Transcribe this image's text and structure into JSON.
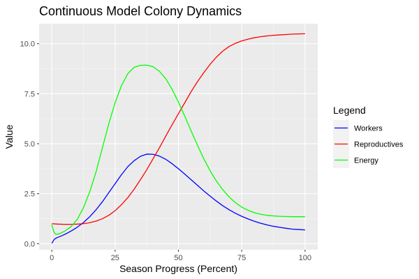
{
  "chart_data": {
    "type": "line",
    "title": "Continuous Model Colony Dynamics",
    "xlabel": "Season Progress (Percent)",
    "ylabel": "Value",
    "xlim": [
      -5,
      105
    ],
    "ylim": [
      -0.3,
      11.0
    ],
    "x_ticks": [
      0,
      25,
      50,
      75,
      100
    ],
    "x_tick_labels": [
      "0",
      "25",
      "50",
      "75",
      "100"
    ],
    "y_ticks": [
      0,
      2.5,
      5,
      7.5,
      10
    ],
    "y_tick_labels": [
      "0.0",
      "2.5",
      "5.0",
      "7.5",
      "10.0"
    ],
    "grid": true,
    "legend": {
      "title": "Legend",
      "position": "right"
    },
    "series": [
      {
        "name": "Workers",
        "color": "#0000ff",
        "x": [
          0,
          1,
          2,
          4,
          6,
          8,
          10,
          12.5,
          15,
          17.5,
          20,
          22.5,
          25,
          27.5,
          30,
          32.5,
          35,
          37.5,
          40,
          42.5,
          45,
          47.5,
          50,
          52.5,
          55,
          57.5,
          60,
          62.5,
          65,
          67.5,
          70,
          72.5,
          75,
          77.5,
          80,
          82.5,
          85,
          87.5,
          90,
          92.5,
          95,
          97.5,
          100
        ],
        "y": [
          0.02,
          0.22,
          0.3,
          0.4,
          0.52,
          0.66,
          0.82,
          1.06,
          1.35,
          1.7,
          2.1,
          2.55,
          3.0,
          3.45,
          3.85,
          4.15,
          4.37,
          4.48,
          4.47,
          4.38,
          4.22,
          4.0,
          3.75,
          3.48,
          3.2,
          2.92,
          2.64,
          2.38,
          2.13,
          1.9,
          1.7,
          1.52,
          1.37,
          1.24,
          1.12,
          1.02,
          0.94,
          0.87,
          0.82,
          0.77,
          0.73,
          0.71,
          0.69
        ]
      },
      {
        "name": "Reproductives",
        "color": "#ff0000",
        "x": [
          0,
          2.5,
          5,
          7.5,
          10,
          12.5,
          15,
          17.5,
          20,
          22.5,
          25,
          27.5,
          30,
          32.5,
          35,
          37.5,
          40,
          42.5,
          45,
          47.5,
          50,
          52.5,
          55,
          57.5,
          60,
          62.5,
          65,
          67.5,
          70,
          72.5,
          75,
          77.5,
          80,
          82.5,
          85,
          87.5,
          90,
          92.5,
          95,
          97.5,
          100
        ],
        "y": [
          1.0,
          0.98,
          0.97,
          0.97,
          0.98,
          1.0,
          1.05,
          1.13,
          1.25,
          1.42,
          1.65,
          1.95,
          2.3,
          2.72,
          3.2,
          3.7,
          4.25,
          4.8,
          5.38,
          5.95,
          6.5,
          7.05,
          7.6,
          8.1,
          8.55,
          8.97,
          9.33,
          9.63,
          9.86,
          10.02,
          10.14,
          10.23,
          10.3,
          10.35,
          10.39,
          10.42,
          10.44,
          10.46,
          10.48,
          10.49,
          10.5
        ]
      },
      {
        "name": "Energy",
        "color": "#00ff00",
        "x": [
          0,
          0.5,
          1,
          1.5,
          2,
          3,
          4,
          5,
          7.5,
          10,
          12.5,
          15,
          17.5,
          20,
          22.5,
          25,
          27.5,
          30,
          32.5,
          35,
          37.5,
          40,
          42.5,
          45,
          47.5,
          50,
          52.5,
          55,
          57.5,
          60,
          62.5,
          65,
          67.5,
          70,
          72.5,
          75,
          77.5,
          80,
          82.5,
          85,
          87.5,
          90,
          92.5,
          95,
          97.5,
          100
        ],
        "y": [
          0.95,
          0.72,
          0.55,
          0.48,
          0.47,
          0.5,
          0.56,
          0.62,
          0.84,
          1.2,
          1.8,
          2.6,
          3.6,
          4.8,
          6.0,
          7.05,
          7.9,
          8.5,
          8.82,
          8.92,
          8.93,
          8.85,
          8.62,
          8.25,
          7.72,
          7.08,
          6.38,
          5.64,
          4.93,
          4.25,
          3.65,
          3.13,
          2.7,
          2.34,
          2.05,
          1.83,
          1.67,
          1.55,
          1.47,
          1.42,
          1.39,
          1.37,
          1.36,
          1.35,
          1.35,
          1.35
        ]
      }
    ]
  }
}
